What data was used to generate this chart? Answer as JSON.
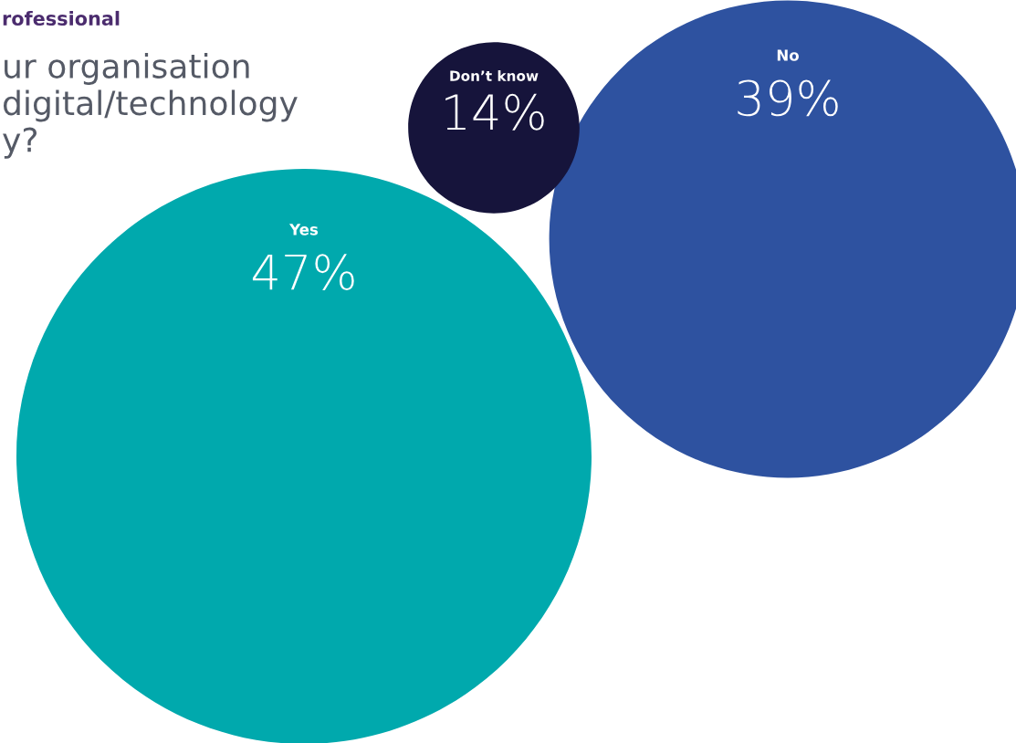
{
  "chart_data": {
    "type": "other",
    "subtitle": "rofessional",
    "title": "ur organisation\ndigital/technology\ny?",
    "categories": [
      "Yes",
      "No",
      "Don’t know"
    ],
    "values": [
      47,
      39,
      14
    ],
    "value_labels": [
      "47%",
      "39%",
      "14%"
    ],
    "colors": [
      "#00a9ad",
      "#2e52a0",
      "#16143b"
    ]
  }
}
